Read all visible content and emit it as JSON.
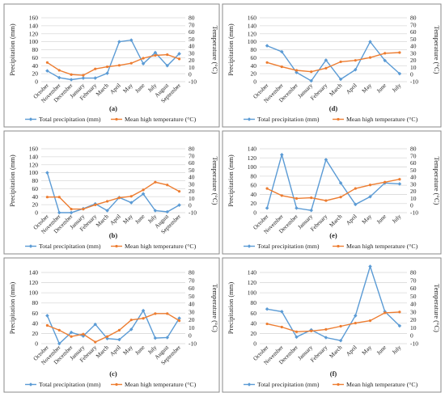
{
  "colors": {
    "precip": "#5b9bd5",
    "temp": "#ed7d31",
    "grid": "#d9d9d9",
    "border": "#8a8a8a",
    "axis_text": "#333333"
  },
  "common": {
    "ylabel_left": "Precipitation (mm)",
    "ylabel_right": "Temperature (°C)",
    "legend_precip": "Total precipitation (mm)",
    "legend_temp": "Mean high temperature (°C)"
  },
  "chart_data": [
    {
      "type": "line",
      "label": "(a)",
      "x": [
        "October",
        "November",
        "December",
        "January",
        "February",
        "March",
        "April",
        "May",
        "June",
        "July",
        "August",
        "September"
      ],
      "ylim_left": [
        0,
        160
      ],
      "ylim_right": [
        -10,
        80
      ],
      "yticks_left": [
        "0",
        "20",
        "40",
        "60",
        "80",
        "100",
        "120",
        "140",
        "160"
      ],
      "yticks_right": [
        "-10",
        "0",
        "10",
        "20",
        "30",
        "40",
        "50",
        "60",
        "70",
        "80"
      ],
      "grid": true,
      "legend": "bottom",
      "series": [
        {
          "name": "Total precipitation (mm)",
          "axis": "left",
          "values": [
            27,
            10,
            5,
            9,
            9,
            21,
            100,
            104,
            45,
            73,
            40,
            70
          ]
        },
        {
          "name": "Mean high temperature (°C)",
          "axis": "right",
          "values": [
            17,
            6,
            0,
            -1,
            8,
            11,
            13,
            16,
            23,
            27,
            28,
            22
          ]
        }
      ]
    },
    {
      "type": "line",
      "label": "(d)",
      "x": [
        "October",
        "November",
        "December",
        "January",
        "February",
        "March",
        "April",
        "May",
        "June",
        "July"
      ],
      "ylim_left": [
        0,
        160
      ],
      "ylim_right": [
        -10,
        80
      ],
      "yticks_left": [
        "0",
        "20",
        "40",
        "60",
        "80",
        "100",
        "120",
        "140",
        "160"
      ],
      "yticks_right": [
        "-10",
        "0",
        "10",
        "20",
        "30",
        "40",
        "50",
        "60",
        "70",
        "80"
      ],
      "grid": true,
      "legend": "bottom",
      "series": [
        {
          "name": "Total precipitation (mm)",
          "axis": "left",
          "values": [
            90,
            75,
            23,
            2,
            54,
            6,
            30,
            100,
            53,
            20
          ]
        },
        {
          "name": "Mean high temperature (°C)",
          "axis": "right",
          "values": [
            17,
            11,
            6,
            4,
            9,
            18,
            20,
            24,
            30,
            31
          ]
        }
      ]
    },
    {
      "type": "line",
      "label": "(b)",
      "x": [
        "October",
        "November",
        "December",
        "January",
        "February",
        "March",
        "April",
        "May",
        "June",
        "July",
        "August",
        "September"
      ],
      "ylim_left": [
        0,
        160
      ],
      "ylim_right": [
        -10,
        80
      ],
      "yticks_left": [
        "0",
        "20",
        "40",
        "60",
        "80",
        "100",
        "120",
        "140",
        "160"
      ],
      "yticks_right": [
        "-10",
        "0",
        "10",
        "20",
        "30",
        "40",
        "50",
        "60",
        "70",
        "80"
      ],
      "grid": true,
      "legend": "bottom",
      "series": [
        {
          "name": "Total precipitation (mm)",
          "axis": "left",
          "values": [
            100,
            0,
            0,
            10,
            22,
            5,
            38,
            25,
            47,
            5,
            2,
            19
          ]
        },
        {
          "name": "Mean high temperature (°C)",
          "axis": "right",
          "values": [
            12,
            12,
            -5,
            -5,
            1,
            6,
            11,
            13,
            22,
            33,
            29,
            20
          ]
        }
      ]
    },
    {
      "type": "line",
      "label": "(e)",
      "x": [
        "October",
        "November",
        "December",
        "January",
        "February",
        "March",
        "April",
        "May",
        "June",
        "July"
      ],
      "ylim_left": [
        0,
        140
      ],
      "ylim_right": [
        -10,
        80
      ],
      "yticks_left": [
        "0",
        "20",
        "40",
        "60",
        "80",
        "100",
        "120",
        "140"
      ],
      "yticks_right": [
        "-10",
        "0",
        "10",
        "20",
        "30",
        "40",
        "50",
        "60",
        "70",
        "80"
      ],
      "grid": true,
      "legend": "bottom",
      "series": [
        {
          "name": "Total precipitation (mm)",
          "axis": "left",
          "values": [
            10,
            127,
            10,
            5,
            116,
            65,
            18,
            35,
            65,
            63
          ]
        },
        {
          "name": "Mean high temperature (°C)",
          "axis": "right",
          "values": [
            24,
            14,
            10,
            11,
            7,
            12,
            24,
            29,
            33,
            37
          ]
        }
      ]
    },
    {
      "type": "line",
      "label": "(c)",
      "x": [
        "October",
        "November",
        "December",
        "January",
        "February",
        "March",
        "April",
        "May",
        "June",
        "July",
        "August",
        "September"
      ],
      "ylim_left": [
        0,
        140
      ],
      "ylim_right": [
        -10,
        80
      ],
      "yticks_left": [
        "0",
        "20",
        "40",
        "60",
        "80",
        "100",
        "120",
        "140"
      ],
      "yticks_right": [
        "-10",
        "0",
        "10",
        "20",
        "30",
        "40",
        "50",
        "60",
        "70",
        "80"
      ],
      "grid": true,
      "legend": "bottom",
      "series": [
        {
          "name": "Total precipitation (mm)",
          "axis": "left",
          "values": [
            55,
            0,
            22,
            15,
            38,
            10,
            8,
            28,
            65,
            11,
            12,
            50
          ]
        },
        {
          "name": "Mean high temperature (°C)",
          "axis": "right",
          "values": [
            13,
            7,
            -1,
            2,
            -8,
            -1,
            7,
            20,
            22,
            28,
            28,
            19
          ]
        }
      ]
    },
    {
      "type": "line",
      "label": "(f)",
      "x": [
        "October",
        "November",
        "December",
        "January",
        "February",
        "March",
        "April",
        "May",
        "June",
        "July"
      ],
      "ylim_left": [
        0,
        140
      ],
      "ylim_right": [
        -10,
        80
      ],
      "yticks_left": [
        "0",
        "20",
        "40",
        "60",
        "80",
        "100",
        "120",
        "140"
      ],
      "yticks_right": [
        "-10",
        "0",
        "10",
        "20",
        "30",
        "40",
        "50",
        "60",
        "70",
        "80"
      ],
      "grid": true,
      "legend": "bottom",
      "series": [
        {
          "name": "Total precipitation (mm)",
          "axis": "left",
          "values": [
            68,
            63,
            13,
            27,
            12,
            6,
            55,
            152,
            63,
            35
          ]
        },
        {
          "name": "Mean high temperature (°C)",
          "axis": "right",
          "values": [
            15,
            11,
            5,
            6,
            8,
            12,
            16,
            19,
            29,
            30
          ]
        }
      ]
    }
  ]
}
